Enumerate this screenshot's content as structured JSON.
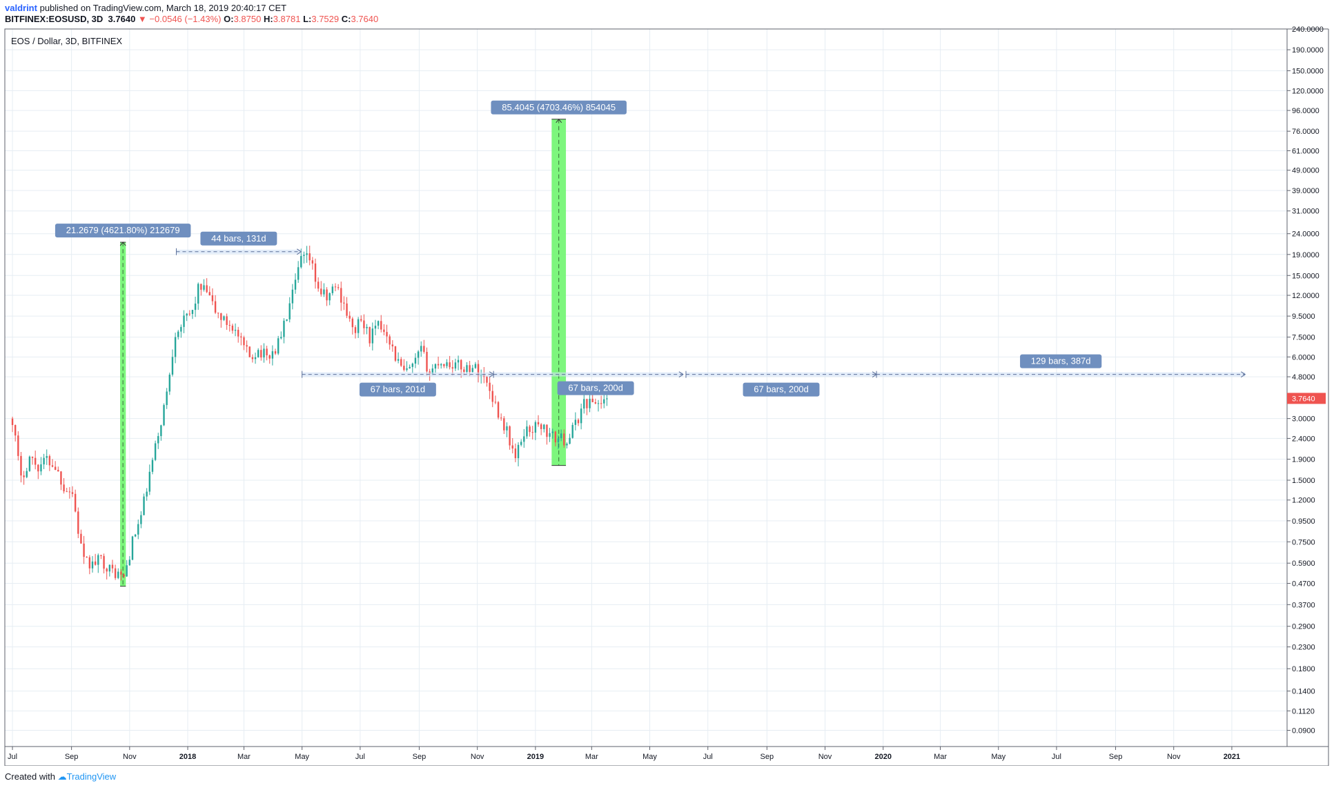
{
  "header": {
    "user": "valdrint",
    "published_text": "published on TradingView.com, March 18, 2019 20:40:17 CET",
    "symbol": "BITFINEX:EOSUSD, 3D",
    "last": "3.7640",
    "change": "−0.0546 (−1.43%)",
    "o_label": "O:",
    "o_value": "3.8750",
    "h_label": "H:",
    "h_value": "3.8781",
    "l_label": "L:",
    "l_value": "3.7529",
    "c_label": "C:",
    "c_value": "3.7640"
  },
  "footer": {
    "created_with": "Created with",
    "brand": "TradingView"
  },
  "chart_data": {
    "type": "candlestick",
    "title": "EOS / Dollar, 3D, BITFINEX",
    "y_scale": "log",
    "ylim": [
      0.075,
      240
    ],
    "xlim": [
      "2017-06-23",
      "2021-02-28"
    ],
    "grid": true,
    "y_ticks": [
      "240.0000",
      "190.0000",
      "150.0000",
      "120.0000",
      "96.0000",
      "76.0000",
      "61.0000",
      "49.0000",
      "39.0000",
      "31.0000",
      "24.0000",
      "19.0000",
      "15.0000",
      "12.0000",
      "9.5000",
      "7.5000",
      "6.0000",
      "4.8000",
      "3.0000",
      "2.4000",
      "1.9000",
      "1.5000",
      "1.2000",
      "0.9500",
      "0.7500",
      "0.5900",
      "0.4700",
      "0.3700",
      "0.2900",
      "0.2300",
      "0.1800",
      "0.1400",
      "0.1120",
      "0.0900"
    ],
    "x_ticks": [
      {
        "label": "Jul",
        "date": "2017-07-01",
        "bold": false
      },
      {
        "label": "Sep",
        "date": "2017-09-01",
        "bold": false
      },
      {
        "label": "Nov",
        "date": "2017-11-01",
        "bold": false
      },
      {
        "label": "2018",
        "date": "2018-01-01",
        "bold": true
      },
      {
        "label": "Mar",
        "date": "2018-03-01",
        "bold": false
      },
      {
        "label": "May",
        "date": "2018-05-01",
        "bold": false
      },
      {
        "label": "Jul",
        "date": "2018-07-01",
        "bold": false
      },
      {
        "label": "Sep",
        "date": "2018-09-01",
        "bold": false
      },
      {
        "label": "Nov",
        "date": "2018-11-01",
        "bold": false
      },
      {
        "label": "2019",
        "date": "2019-01-01",
        "bold": true
      },
      {
        "label": "Mar",
        "date": "2019-03-01",
        "bold": false
      },
      {
        "label": "May",
        "date": "2019-05-01",
        "bold": false
      },
      {
        "label": "Jul",
        "date": "2019-07-01",
        "bold": false
      },
      {
        "label": "Sep",
        "date": "2019-09-01",
        "bold": false
      },
      {
        "label": "Nov",
        "date": "2019-11-01",
        "bold": false
      },
      {
        "label": "2020",
        "date": "2020-01-01",
        "bold": true
      },
      {
        "label": "Mar",
        "date": "2020-03-01",
        "bold": false
      },
      {
        "label": "May",
        "date": "2020-05-01",
        "bold": false
      },
      {
        "label": "Jul",
        "date": "2020-07-01",
        "bold": false
      },
      {
        "label": "Sep",
        "date": "2020-09-01",
        "bold": false
      },
      {
        "label": "Nov",
        "date": "2020-11-01",
        "bold": false
      },
      {
        "label": "2021",
        "date": "2021-01-01",
        "bold": true
      }
    ],
    "price_line": {
      "value": 3.764,
      "label": "3.7640"
    },
    "colors": {
      "up": "#26a69a",
      "down": "#ef5350",
      "range_fill": "#76f576",
      "range_label_bg": "#6f8fbf",
      "range_line": "#5b6f99",
      "grid": "#e6edf3"
    },
    "path": [
      [
        "2017-07-01",
        3.0
      ],
      [
        "2017-07-10",
        1.5
      ],
      [
        "2017-07-19",
        1.95
      ],
      [
        "2017-07-28",
        1.75
      ],
      [
        "2017-08-06",
        1.9
      ],
      [
        "2017-08-15",
        1.75
      ],
      [
        "2017-08-24",
        1.4
      ],
      [
        "2017-09-02",
        1.3
      ],
      [
        "2017-09-08",
        0.85
      ],
      [
        "2017-09-14",
        0.6
      ],
      [
        "2017-09-23",
        0.58
      ],
      [
        "2017-10-02",
        0.62
      ],
      [
        "2017-10-11",
        0.55
      ],
      [
        "2017-10-20",
        0.52
      ],
      [
        "2017-10-26",
        0.5
      ],
      [
        "2017-11-04",
        0.75
      ],
      [
        "2017-11-13",
        1.0
      ],
      [
        "2017-11-22",
        1.6
      ],
      [
        "2017-12-01",
        2.5
      ],
      [
        "2017-12-10",
        4.0
      ],
      [
        "2017-12-19",
        8.0
      ],
      [
        "2017-12-28",
        9.0
      ],
      [
        "2018-01-06",
        10.0
      ],
      [
        "2018-01-12",
        13.0
      ],
      [
        "2018-01-21",
        12.5
      ],
      [
        "2018-01-30",
        10.0
      ],
      [
        "2018-02-08",
        9.0
      ],
      [
        "2018-02-17",
        8.5
      ],
      [
        "2018-02-26",
        7.0
      ],
      [
        "2018-03-07",
        6.0
      ],
      [
        "2018-03-16",
        6.5
      ],
      [
        "2018-03-25",
        6.0
      ],
      [
        "2018-04-03",
        6.5
      ],
      [
        "2018-04-12",
        8.5
      ],
      [
        "2018-04-21",
        12.0
      ],
      [
        "2018-04-30",
        18.0
      ],
      [
        "2018-05-09",
        18.0
      ],
      [
        "2018-05-18",
        13.0
      ],
      [
        "2018-05-27",
        11.5
      ],
      [
        "2018-06-05",
        13.5
      ],
      [
        "2018-06-14",
        11.0
      ],
      [
        "2018-06-23",
        8.0
      ],
      [
        "2018-07-02",
        9.0
      ],
      [
        "2018-07-11",
        7.5
      ],
      [
        "2018-07-20",
        8.5
      ],
      [
        "2018-07-29",
        8.0
      ],
      [
        "2018-08-07",
        6.0
      ],
      [
        "2018-08-16",
        5.0
      ],
      [
        "2018-08-25",
        5.3
      ],
      [
        "2018-09-03",
        6.5
      ],
      [
        "2018-09-12",
        5.0
      ],
      [
        "2018-09-21",
        5.7
      ],
      [
        "2018-09-30",
        5.6
      ],
      [
        "2018-10-09",
        5.5
      ],
      [
        "2018-10-18",
        5.3
      ],
      [
        "2018-10-27",
        5.4
      ],
      [
        "2018-11-05",
        5.0
      ],
      [
        "2018-11-14",
        4.2
      ],
      [
        "2018-11-23",
        3.2
      ],
      [
        "2018-12-02",
        2.6
      ],
      [
        "2018-12-11",
        1.9
      ],
      [
        "2018-12-20",
        2.6
      ],
      [
        "2018-12-29",
        2.7
      ],
      [
        "2019-01-07",
        2.8
      ],
      [
        "2019-01-16",
        2.45
      ],
      [
        "2019-01-25",
        2.4
      ],
      [
        "2019-02-03",
        2.35
      ],
      [
        "2019-02-12",
        2.8
      ],
      [
        "2019-02-21",
        3.6
      ],
      [
        "2019-03-02",
        3.6
      ],
      [
        "2019-03-11",
        3.6
      ],
      [
        "2019-03-18",
        3.764
      ]
    ],
    "ranges": [
      {
        "label": "21.2679 (4621.80%) 212679",
        "x0": "2017-10-22",
        "x1": "2017-10-28",
        "low": 0.455,
        "high": 21.8
      },
      {
        "label": "85.4045 (4703.46%) 854045",
        "x0": "2019-01-18",
        "x1": "2019-02-02",
        "low": 1.77,
        "high": 87.0
      }
    ],
    "bar_ranges": [
      {
        "label": "44 bars, 131d",
        "x0": "2017-12-20",
        "x1": "2018-04-30",
        "y": 19.6,
        "label_pos": "above"
      },
      {
        "label": "67 bars, 201d",
        "x0": "2018-05-01",
        "x1": "2018-11-18",
        "y": 4.93,
        "label_pos": "below"
      },
      {
        "label": "67 bars, 200d",
        "x0": "2018-11-18",
        "x1": "2019-06-05",
        "y": 4.93,
        "label_pos": "below-inside"
      },
      {
        "label": "67 bars, 200d",
        "x0": "2019-06-08",
        "x1": "2019-12-25",
        "y": 4.93,
        "label_pos": "below"
      },
      {
        "label": "129 bars, 387d",
        "x0": "2019-12-25",
        "x1": "2021-01-15",
        "y": 4.93,
        "label_pos": "above"
      }
    ]
  }
}
